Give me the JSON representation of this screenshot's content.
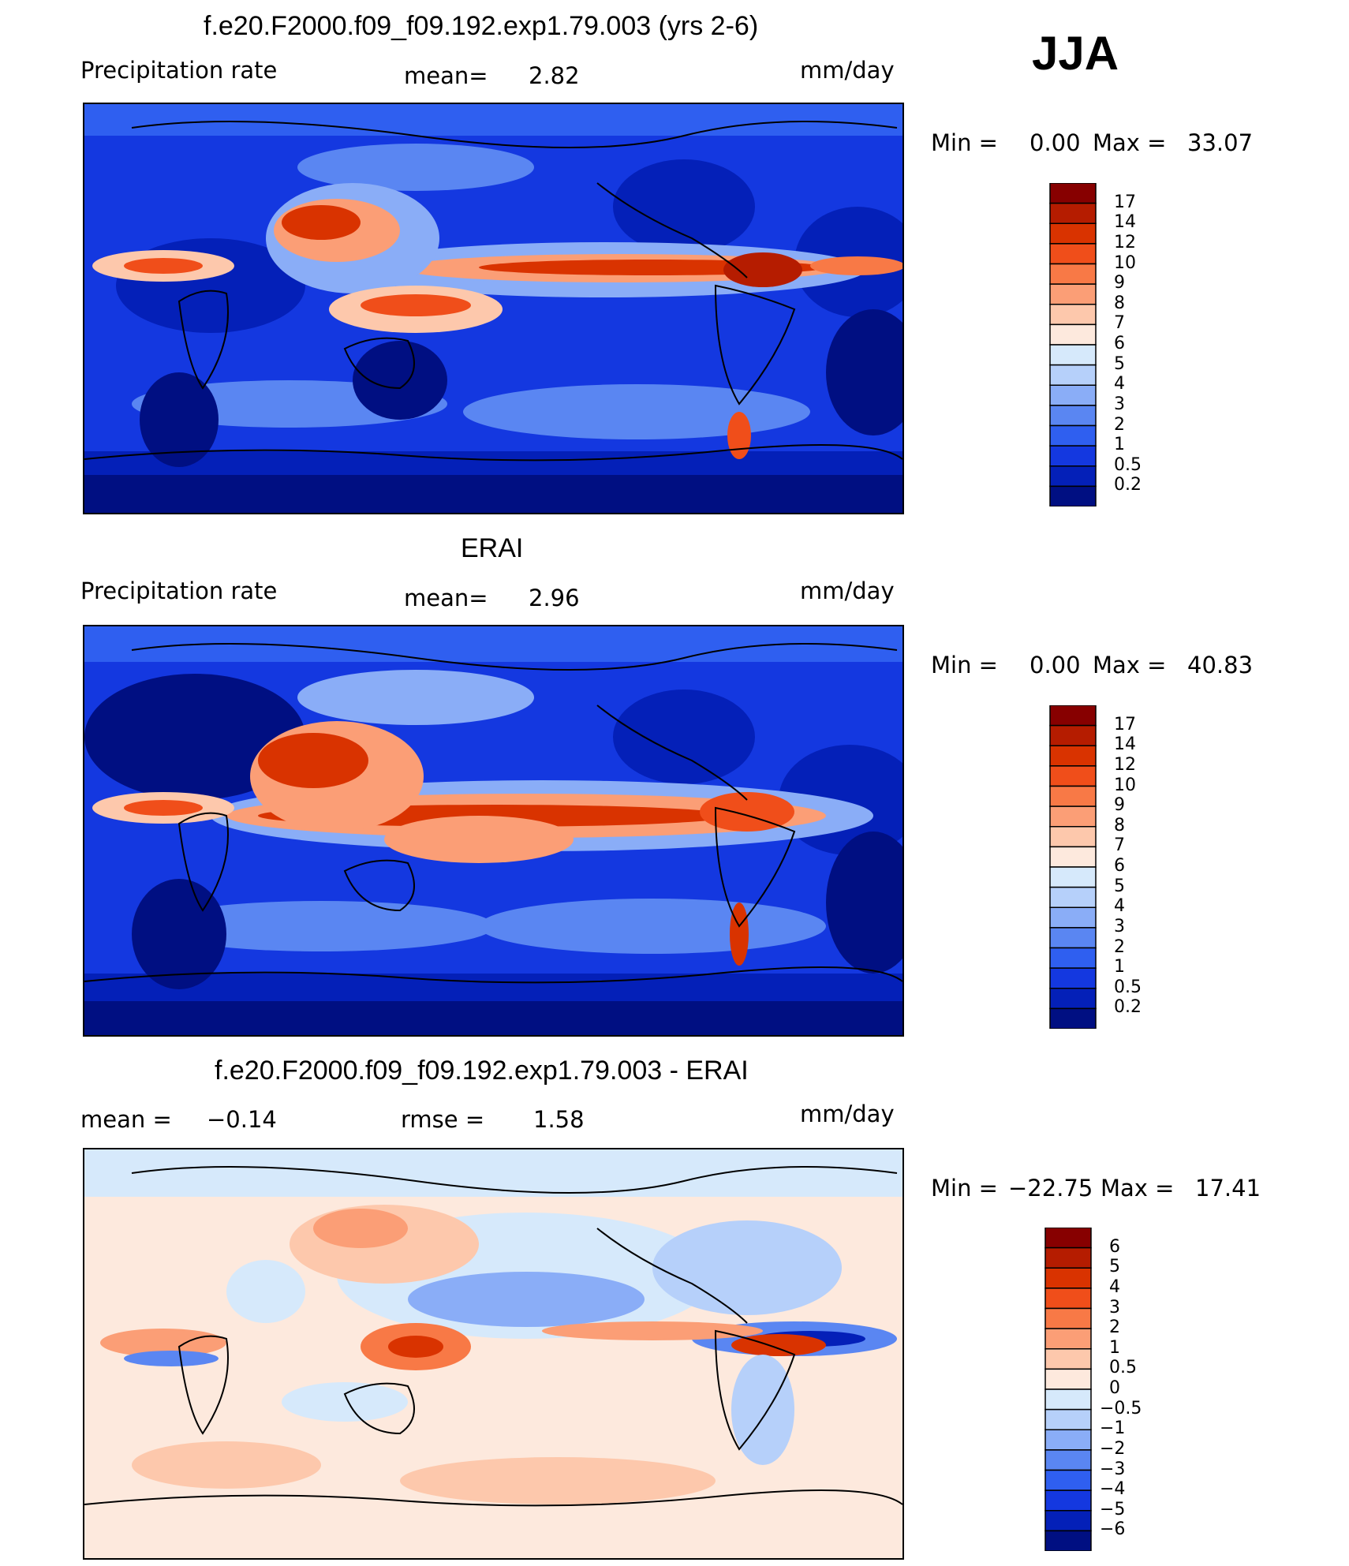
{
  "season": "JJA",
  "panels": [
    {
      "title": "f.e20.F2000.f09_f09.192.exp1.79.003 (yrs 2-6)",
      "left_label": "Precipitation  rate",
      "center_label": "mean=",
      "center_value": "2.82",
      "units": "mm/day",
      "min_label": "Min  =",
      "min_value": "0.00",
      "max_label": "Max  =",
      "max_value": "33.07"
    },
    {
      "title": "ERAI",
      "left_label": "Precipitation  rate",
      "center_label": "mean=",
      "center_value": "2.96",
      "units": "mm/day",
      "min_label": "Min  =",
      "min_value": "0.00",
      "max_label": "Max  =",
      "max_value": "40.83"
    },
    {
      "title": "f.e20.F2000.f09_f09.192.exp1.79.003 - ERAI",
      "left_label": "mean  =",
      "left_value": "−0.14",
      "center_label": "rmse  =",
      "center_value": "1.58",
      "units": "mm/day",
      "min_label": "Min  =",
      "min_value": "−22.75",
      "max_label": "Max  =",
      "max_value": "17.41"
    }
  ],
  "chart_data": [
    {
      "type": "heatmap",
      "title": "f.e20.F2000.f09_f09.192.exp1.79.003 (yrs 2-6)",
      "variable": "Precipitation rate",
      "units": "mm/day",
      "mean": 2.82,
      "min": 0.0,
      "max": 33.07,
      "colorbar_levels": [
        "17",
        "14",
        "12",
        "10",
        "9",
        "8",
        "7",
        "6",
        "5",
        "4",
        "3",
        "2",
        "1",
        "0.5",
        "0.2"
      ],
      "colorbar_colors": [
        "#870000",
        "#b51c00",
        "#d93300",
        "#f04e1a",
        "#f87946",
        "#fb9e76",
        "#fdc8ac",
        "#fde9dd",
        "#d6e9fb",
        "#b6d0fa",
        "#8aadf7",
        "#5a86f2",
        "#2f5ff0",
        "#1438e0",
        "#0420b8",
        "#000f82"
      ]
    },
    {
      "type": "heatmap",
      "title": "ERAI",
      "variable": "Precipitation rate",
      "units": "mm/day",
      "mean": 2.96,
      "min": 0.0,
      "max": 40.83,
      "colorbar_levels": [
        "17",
        "14",
        "12",
        "10",
        "9",
        "8",
        "7",
        "6",
        "5",
        "4",
        "3",
        "2",
        "1",
        "0.5",
        "0.2"
      ],
      "colorbar_colors": [
        "#870000",
        "#b51c00",
        "#d93300",
        "#f04e1a",
        "#f87946",
        "#fb9e76",
        "#fdc8ac",
        "#fde9dd",
        "#d6e9fb",
        "#b6d0fa",
        "#8aadf7",
        "#5a86f2",
        "#2f5ff0",
        "#1438e0",
        "#0420b8",
        "#000f82"
      ]
    },
    {
      "type": "heatmap",
      "title": "f.e20.F2000.f09_f09.192.exp1.79.003 - ERAI",
      "units": "mm/day",
      "mean": -0.14,
      "rmse": 1.58,
      "min": -22.75,
      "max": 17.41,
      "colorbar_levels": [
        "6",
        "5",
        "4",
        "3",
        "2",
        "1",
        "0.5",
        "0",
        "−0.5",
        "−1",
        "−2",
        "−3",
        "−4",
        "−5",
        "−6"
      ],
      "colorbar_colors": [
        "#870000",
        "#b51c00",
        "#d93300",
        "#f04e1a",
        "#f87946",
        "#fb9e76",
        "#fdc8ac",
        "#fde9dd",
        "#d6e9fb",
        "#b6d0fa",
        "#8aadf7",
        "#5a86f2",
        "#2f5ff0",
        "#1438e0",
        "#0420b8",
        "#000f82"
      ]
    }
  ]
}
